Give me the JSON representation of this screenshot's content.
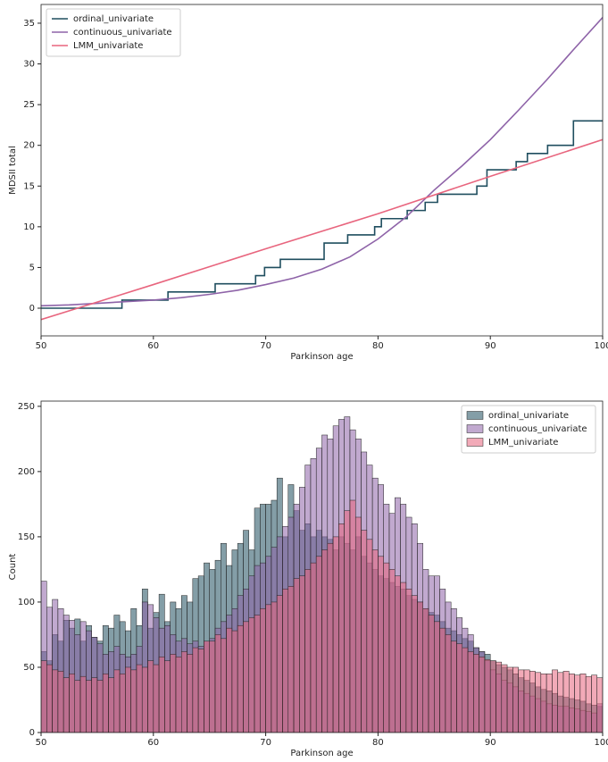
{
  "chart_data": [
    {
      "type": "line",
      "xlabel": "Parkinson age",
      "ylabel": "MDSII total",
      "xlim": [
        50,
        100
      ],
      "ylim": [
        -3.4,
        37.3
      ],
      "xticks": [
        50,
        60,
        70,
        80,
        90,
        100
      ],
      "yticks": [
        0,
        5,
        10,
        15,
        20,
        25,
        30,
        35
      ],
      "legend": "upper left",
      "series": [
        {
          "name": "ordinal_univariate",
          "color": "#1f4e5f",
          "x": [
            50,
            57.2,
            57.2,
            61.3,
            61.3,
            65.5,
            65.5,
            69.1,
            69.1,
            69.9,
            69.9,
            71.3,
            71.3,
            75.2,
            75.2,
            77.3,
            77.3,
            79.7,
            79.7,
            80.3,
            80.3,
            82.6,
            82.6,
            84.2,
            84.2,
            85.3,
            85.3,
            88.8,
            88.8,
            89.7,
            89.7,
            92.3,
            92.3,
            93.3,
            93.3,
            95.1,
            95.1,
            97.4,
            97.4,
            100
          ],
          "values": [
            0,
            0,
            1,
            1,
            2,
            2,
            3,
            3,
            4,
            4,
            5,
            5,
            6,
            6,
            8,
            8,
            9,
            9,
            10,
            10,
            11,
            11,
            12,
            12,
            13,
            13,
            14,
            14,
            15,
            15,
            17,
            17,
            18,
            18,
            19,
            19,
            20,
            20,
            23,
            23
          ]
        },
        {
          "name": "continuous_univariate",
          "color": "#8e63a8",
          "x": [
            50,
            52.5,
            55,
            57.5,
            60,
            62.5,
            65,
            67.5,
            70,
            72.5,
            75,
            77.5,
            80,
            82.5,
            85,
            87.5,
            90,
            92.5,
            95,
            97.5,
            100
          ],
          "values": [
            0.3,
            0.4,
            0.6,
            0.8,
            1.0,
            1.3,
            1.7,
            2.2,
            2.9,
            3.7,
            4.8,
            6.3,
            8.5,
            11.2,
            14.5,
            17.5,
            20.7,
            24.3,
            28,
            31.9,
            35.7
          ]
        },
        {
          "name": "LMM_univariate",
          "color": "#e8657e",
          "x": [
            50,
            60,
            70,
            80,
            90,
            100
          ],
          "values": [
            -1.4,
            2.9,
            7.3,
            11.6,
            16.2,
            20.7
          ]
        }
      ]
    },
    {
      "type": "histogram",
      "xlabel": "Parkinson age",
      "ylabel": "Count",
      "xlim": [
        50,
        100
      ],
      "ylim": [
        0,
        254
      ],
      "xticks": [
        50,
        60,
        70,
        80,
        90,
        100
      ],
      "yticks": [
        0,
        50,
        100,
        150,
        200,
        250
      ],
      "legend": "upper right",
      "bins": [
        50,
        50.5,
        51,
        51.5,
        52,
        52.5,
        53,
        53.5,
        54,
        54.5,
        55,
        55.5,
        56,
        56.5,
        57,
        57.5,
        58,
        58.5,
        59,
        59.5,
        60,
        60.5,
        61,
        61.5,
        62,
        62.5,
        63,
        63.5,
        64,
        64.5,
        65,
        65.5,
        66,
        66.5,
        67,
        67.5,
        68,
        68.5,
        69,
        69.5,
        70,
        70.5,
        71,
        71.5,
        72,
        72.5,
        73,
        73.5,
        74,
        74.5,
        75,
        75.5,
        76,
        76.5,
        77,
        77.5,
        78,
        78.5,
        79,
        79.5,
        80,
        80.5,
        81,
        81.5,
        82,
        82.5,
        83,
        83.5,
        84,
        84.5,
        85,
        85.5,
        86,
        86.5,
        87,
        87.5,
        88,
        88.5,
        89,
        89.5,
        90,
        90.5,
        91,
        91.5,
        92,
        92.5,
        93,
        93.5,
        94,
        94.5,
        95,
        95.5,
        96,
        96.5,
        97,
        97.5,
        98,
        98.5,
        99,
        99.5,
        100
      ],
      "series": [
        {
          "name": "ordinal_univariate",
          "color": "#1f4e5f",
          "values": [
            62,
            55,
            75,
            70,
            86,
            80,
            87,
            70,
            82,
            73,
            70,
            82,
            80,
            90,
            85,
            78,
            95,
            82,
            110,
            80,
            92,
            106,
            85,
            100,
            95,
            105,
            100,
            118,
            120,
            130,
            125,
            132,
            145,
            128,
            140,
            145,
            155,
            140,
            172,
            175,
            175,
            178,
            195,
            150,
            190,
            170,
            155,
            160,
            150,
            155,
            150,
            148,
            140,
            150,
            145,
            140,
            150,
            135,
            130,
            125,
            120,
            118,
            115,
            112,
            110,
            105,
            102,
            100,
            95,
            92,
            90,
            85,
            80,
            78,
            75,
            72,
            70,
            65,
            62,
            60,
            55,
            52,
            50,
            48,
            45,
            42,
            40,
            38,
            35,
            33,
            32,
            30,
            28,
            27,
            26,
            25,
            24,
            22,
            21,
            20
          ]
        },
        {
          "name": "continuous_univariate",
          "color": "#8e63a8",
          "values": [
            116,
            96,
            102,
            95,
            90,
            86,
            75,
            85,
            78,
            73,
            68,
            60,
            62,
            66,
            60,
            58,
            60,
            66,
            100,
            98,
            88,
            80,
            82,
            75,
            70,
            72,
            68,
            70,
            66,
            70,
            72,
            80,
            85,
            90,
            95,
            105,
            110,
            120,
            128,
            130,
            135,
            142,
            150,
            158,
            165,
            175,
            188,
            205,
            210,
            218,
            228,
            225,
            235,
            240,
            242,
            232,
            225,
            215,
            205,
            195,
            190,
            175,
            168,
            180,
            175,
            165,
            160,
            145,
            125,
            120,
            120,
            110,
            100,
            95,
            88,
            80,
            75,
            65,
            62,
            55,
            48,
            45,
            40,
            38,
            35,
            32,
            30,
            28,
            26,
            24,
            22,
            21,
            20,
            20,
            19,
            18,
            17,
            16,
            15,
            22
          ]
        },
        {
          "name": "LMM_univariate",
          "color": "#e8657e",
          "values": [
            55,
            52,
            48,
            47,
            42,
            45,
            40,
            43,
            40,
            42,
            40,
            45,
            42,
            48,
            45,
            50,
            48,
            52,
            50,
            55,
            52,
            58,
            55,
            60,
            58,
            62,
            60,
            65,
            64,
            70,
            70,
            75,
            72,
            80,
            78,
            82,
            85,
            88,
            90,
            95,
            98,
            100,
            105,
            110,
            112,
            118,
            120,
            125,
            130,
            135,
            140,
            145,
            150,
            160,
            170,
            178,
            165,
            155,
            148,
            140,
            135,
            130,
            125,
            120,
            115,
            110,
            105,
            100,
            95,
            90,
            85,
            80,
            75,
            70,
            68,
            65,
            62,
            60,
            58,
            56,
            55,
            54,
            52,
            50,
            50,
            48,
            48,
            47,
            46,
            45,
            45,
            48,
            46,
            47,
            45,
            44,
            45,
            43,
            44,
            42
          ]
        }
      ]
    }
  ]
}
